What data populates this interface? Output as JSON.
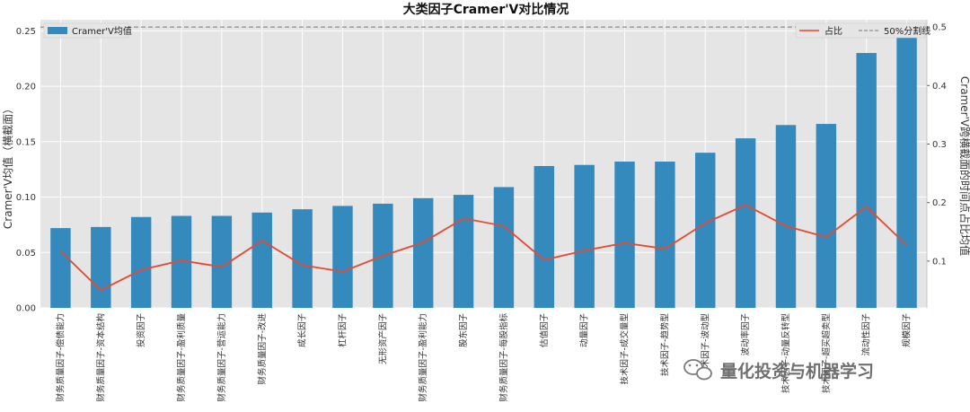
{
  "chart_data": {
    "type": "bar",
    "title": "大类因子Cramer'V对比情况",
    "ylabel_left": "Cramer'V均值（横截面）",
    "ylabel_right": "Cramer'V跨横截面的时间点占比均值",
    "ylim_left": [
      0,
      0.26
    ],
    "ylim_right": [
      0.02,
      0.5125
    ],
    "yticks_left": [
      "0.00",
      "0.05",
      "0.10",
      "0.15",
      "0.20",
      "0.25"
    ],
    "yticks_right": [
      "0.1",
      "0.2",
      "0.3",
      "0.4",
      "0.5"
    ],
    "grid": true,
    "categories": [
      "财务质量因子-偿债能力",
      "财务质量因子-资本结构",
      "投资因子",
      "财务质量因子-盈利质量",
      "财务质量因子-营运能力",
      "财务质量因子-改进",
      "成长因子",
      "杠杆因子",
      "无形资产因子",
      "财务质量因子-盈利能力",
      "股东因子",
      "财务质量因子-每股指标",
      "估值因子",
      "动量因子",
      "技术因子-成交量型",
      "技术因子-趋势型",
      "技术因子-波动型",
      "波动率因子",
      "技术因子-动量反转型",
      "技术因子-超买超卖型",
      "流动性因子",
      "规模因子"
    ],
    "series": [
      {
        "name": "Cramer'V均值",
        "type": "bar",
        "axis": "left",
        "color": "#348abd",
        "values": [
          0.072,
          0.073,
          0.082,
          0.083,
          0.083,
          0.086,
          0.089,
          0.092,
          0.094,
          0.099,
          0.102,
          0.109,
          0.128,
          0.129,
          0.132,
          0.132,
          0.14,
          0.153,
          0.165,
          0.166,
          0.23,
          0.247
        ]
      },
      {
        "name": "占比",
        "type": "line",
        "axis": "right",
        "color": "#e24a33",
        "values": [
          0.117,
          0.05,
          0.085,
          0.101,
          0.09,
          0.135,
          0.093,
          0.082,
          0.109,
          0.132,
          0.173,
          0.16,
          0.102,
          0.118,
          0.131,
          0.121,
          0.165,
          0.196,
          0.16,
          0.141,
          0.193,
          0.127
        ]
      },
      {
        "name": "50%分割线",
        "type": "hline",
        "axis": "right",
        "color": "#777777",
        "value": 0.5
      }
    ],
    "legend_left_position": "top-left",
    "legend_right_position": "top-right"
  },
  "watermark": {
    "text": "量化投资与机器学习",
    "icon": "wechat-icon"
  }
}
